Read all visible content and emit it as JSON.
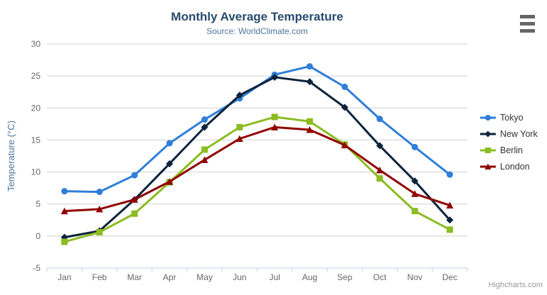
{
  "chart_data": {
    "type": "line",
    "title": "Monthly Average Temperature",
    "subtitle": "Source: WorldClimate.com",
    "xlabel": "",
    "ylabel": "Temperature (°C)",
    "ylim": [
      -5,
      30
    ],
    "ytick_step": 5,
    "grid": true,
    "legend_position": "right",
    "categories": [
      "Jan",
      "Feb",
      "Mar",
      "Apr",
      "May",
      "Jun",
      "Jul",
      "Aug",
      "Sep",
      "Oct",
      "Nov",
      "Dec"
    ],
    "series": [
      {
        "name": "Tokyo",
        "color": "#2f7ed8",
        "marker": "circle",
        "values": [
          7.0,
          6.9,
          9.5,
          14.5,
          18.2,
          21.5,
          25.2,
          26.5,
          23.3,
          18.3,
          13.9,
          9.6
        ]
      },
      {
        "name": "New York",
        "color": "#0d233a",
        "marker": "diamond",
        "values": [
          -0.2,
          0.8,
          5.7,
          11.3,
          17.0,
          22.0,
          24.8,
          24.1,
          20.1,
          14.1,
          8.6,
          2.5
        ]
      },
      {
        "name": "Berlin",
        "color": "#8bbc21",
        "marker": "square",
        "values": [
          -0.9,
          0.6,
          3.5,
          8.4,
          13.5,
          17.0,
          18.6,
          17.9,
          14.3,
          9.0,
          3.9,
          1.0
        ]
      },
      {
        "name": "London",
        "color": "#910000",
        "marker": "triangle",
        "values": [
          3.9,
          4.2,
          5.7,
          8.5,
          11.9,
          15.2,
          17.0,
          16.6,
          14.2,
          10.3,
          6.6,
          4.8
        ]
      }
    ],
    "palette": {
      "title_color": "#274b6d",
      "subtitle_color": "#4d759e",
      "axis_title_color": "#4d759e",
      "tick_label_color": "#666666",
      "grid_color": "#d0d0d0",
      "axis_line_color": "#c0d0e0",
      "legend_text_color": "#333333"
    }
  },
  "footer": {
    "credit": "Highcharts.com"
  },
  "icons": {
    "export_menu": "hamburger-icon"
  }
}
